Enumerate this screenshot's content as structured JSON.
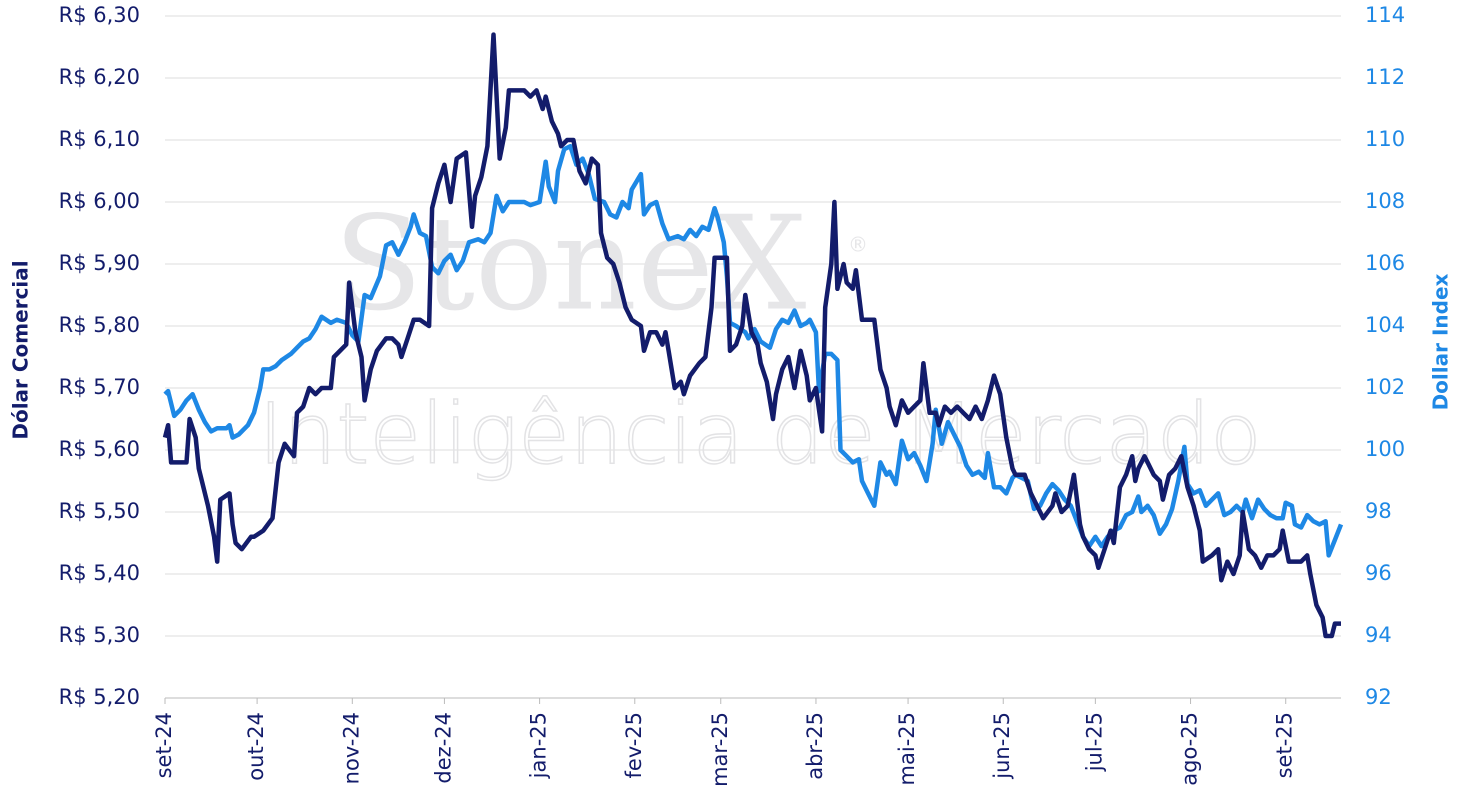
{
  "chart_data": {
    "type": "line",
    "watermark": [
      "StoneX",
      "®",
      "Inteligência de Mercado"
    ],
    "ylabel": "Dólar Comercial",
    "y2label": "Dollar Index",
    "xlim": [
      0,
      383
    ],
    "xticks": [
      {
        "value": 0,
        "label": "set-24"
      },
      {
        "value": 30,
        "label": "out-24"
      },
      {
        "value": 61,
        "label": "nov-24"
      },
      {
        "value": 91,
        "label": "dez-24"
      },
      {
        "value": 122,
        "label": "jan-25"
      },
      {
        "value": 153,
        "label": "fev-25"
      },
      {
        "value": 181,
        "label": "mar-25"
      },
      {
        "value": 212,
        "label": "abr-25"
      },
      {
        "value": 242,
        "label": "mai-25"
      },
      {
        "value": 273,
        "label": "jun-25"
      },
      {
        "value": 303,
        "label": "jul-25"
      },
      {
        "value": 334,
        "label": "ago-25"
      },
      {
        "value": 365,
        "label": "set-25"
      }
    ],
    "ylim": [
      5.2,
      6.3
    ],
    "yticks": [
      {
        "value": 5.2,
        "label": "R$ 5,20"
      },
      {
        "value": 5.3,
        "label": "R$ 5,30"
      },
      {
        "value": 5.4,
        "label": "R$ 5,40"
      },
      {
        "value": 5.5,
        "label": "R$ 5,50"
      },
      {
        "value": 5.6,
        "label": "R$ 5,60"
      },
      {
        "value": 5.7,
        "label": "R$ 5,70"
      },
      {
        "value": 5.8,
        "label": "R$ 5,80"
      },
      {
        "value": 5.9,
        "label": "R$ 5,90"
      },
      {
        "value": 6.0,
        "label": "R$ 6,00"
      },
      {
        "value": 6.1,
        "label": "R$ 6,10"
      },
      {
        "value": 6.2,
        "label": "R$ 6,20"
      },
      {
        "value": 6.3,
        "label": "R$ 6,30"
      }
    ],
    "y2lim": [
      92,
      114
    ],
    "y2ticks": [
      92,
      94,
      96,
      98,
      100,
      102,
      104,
      106,
      108,
      110,
      112,
      114
    ],
    "grid": true,
    "series": [
      {
        "name": "Dólar Comercial",
        "color": "#131c6b",
        "x": [
          0,
          1,
          2,
          5,
          7,
          8,
          10,
          11,
          14,
          16,
          17,
          18,
          21,
          22,
          23,
          25,
          28,
          29,
          32,
          35,
          37,
          39,
          42,
          43,
          45,
          47,
          49,
          51,
          54,
          55,
          59,
          60,
          62,
          64,
          65,
          67,
          69,
          72,
          74,
          76,
          77,
          79,
          81,
          83,
          86,
          87,
          89,
          91,
          93,
          95,
          98,
          100,
          101,
          103,
          105,
          107,
          109,
          111,
          112,
          115,
          117,
          119,
          121,
          123,
          124,
          126,
          128,
          129,
          131,
          133,
          135,
          137,
          139,
          141,
          142,
          144,
          146,
          148,
          150,
          152,
          155,
          156,
          158,
          160,
          162,
          163,
          164,
          166,
          168,
          169,
          171,
          174,
          176,
          178,
          179,
          183,
          184,
          186,
          188,
          189,
          191,
          193,
          194,
          196,
          198,
          199,
          201,
          203,
          205,
          207,
          209,
          210,
          212,
          214,
          215,
          217,
          218,
          219,
          221,
          222,
          224,
          225,
          227,
          231,
          233,
          235,
          236,
          238,
          240,
          242,
          244,
          246,
          247,
          249,
          251,
          252,
          254,
          256,
          258,
          260,
          262,
          264,
          266,
          268,
          270,
          272,
          274,
          276,
          277,
          280,
          282,
          284,
          286,
          289,
          290,
          292,
          294,
          296,
          298,
          299,
          301,
          303,
          304,
          306,
          308,
          309,
          311,
          313,
          315,
          316,
          317,
          319,
          320,
          322,
          324,
          325,
          327,
          329,
          330,
          331,
          333,
          335,
          337,
          338,
          341,
          343,
          344,
          346,
          348,
          350,
          351,
          353,
          355,
          357,
          359,
          361,
          363,
          364,
          366,
          368,
          370,
          372,
          373,
          375,
          377,
          378,
          380,
          381,
          383
        ],
        "values": [
          5.62,
          5.64,
          5.58,
          5.58,
          5.58,
          5.65,
          5.62,
          5.57,
          5.51,
          5.46,
          5.42,
          5.52,
          5.53,
          5.48,
          5.45,
          5.44,
          5.46,
          5.46,
          5.47,
          5.49,
          5.58,
          5.61,
          5.59,
          5.66,
          5.67,
          5.7,
          5.69,
          5.7,
          5.7,
          5.75,
          5.77,
          5.87,
          5.79,
          5.75,
          5.68,
          5.73,
          5.76,
          5.78,
          5.78,
          5.77,
          5.75,
          5.78,
          5.81,
          5.81,
          5.8,
          5.99,
          6.03,
          6.06,
          6.0,
          6.07,
          6.08,
          5.96,
          6.01,
          6.04,
          6.09,
          6.27,
          6.07,
          6.12,
          6.18,
          6.18,
          6.18,
          6.17,
          6.18,
          6.15,
          6.17,
          6.13,
          6.11,
          6.09,
          6.1,
          6.1,
          6.05,
          6.03,
          6.07,
          6.06,
          5.95,
          5.91,
          5.9,
          5.87,
          5.83,
          5.81,
          5.8,
          5.76,
          5.79,
          5.79,
          5.77,
          5.79,
          5.76,
          5.7,
          5.71,
          5.69,
          5.72,
          5.74,
          5.75,
          5.83,
          5.91,
          5.91,
          5.76,
          5.77,
          5.8,
          5.85,
          5.79,
          5.77,
          5.74,
          5.71,
          5.65,
          5.69,
          5.73,
          5.75,
          5.7,
          5.76,
          5.72,
          5.68,
          5.7,
          5.63,
          5.83,
          5.9,
          6.0,
          5.86,
          5.9,
          5.87,
          5.86,
          5.89,
          5.81,
          5.81,
          5.73,
          5.7,
          5.67,
          5.64,
          5.68,
          5.66,
          5.67,
          5.68,
          5.74,
          5.66,
          5.66,
          5.64,
          5.67,
          5.66,
          5.67,
          5.66,
          5.65,
          5.67,
          5.65,
          5.68,
          5.72,
          5.69,
          5.62,
          5.57,
          5.56,
          5.56,
          5.53,
          5.51,
          5.49,
          5.51,
          5.53,
          5.5,
          5.51,
          5.56,
          5.48,
          5.46,
          5.44,
          5.43,
          5.41,
          5.44,
          5.47,
          5.45,
          5.54,
          5.56,
          5.59,
          5.55,
          5.57,
          5.59,
          5.58,
          5.56,
          5.55,
          5.52,
          5.56,
          5.57,
          5.58,
          5.59,
          5.54,
          5.51,
          5.47,
          5.42,
          5.43,
          5.44,
          5.39,
          5.42,
          5.4,
          5.43,
          5.5,
          5.44,
          5.43,
          5.41,
          5.43,
          5.43,
          5.44,
          5.47,
          5.42,
          5.42,
          5.42,
          5.43,
          5.4,
          5.35,
          5.33,
          5.3,
          5.3,
          5.32,
          5.32
        ]
      },
      {
        "name": "Dollar Index",
        "color": "#1e88e5",
        "axis": "y2",
        "x": [
          0,
          1,
          3,
          5,
          7,
          9,
          11,
          13,
          15,
          17,
          20,
          21,
          22,
          24,
          27,
          29,
          31,
          32,
          34,
          36,
          38,
          41,
          43,
          45,
          47,
          49,
          51,
          54,
          56,
          59,
          61,
          63,
          65,
          67,
          70,
          72,
          74,
          76,
          78,
          80,
          81,
          83,
          85,
          87,
          89,
          91,
          93,
          95,
          97,
          99,
          102,
          104,
          106,
          108,
          110,
          112,
          115,
          117,
          119,
          122,
          124,
          125,
          127,
          128,
          130,
          132,
          134,
          136,
          138,
          140,
          143,
          145,
          147,
          149,
          151,
          152,
          155,
          156,
          158,
          160,
          162,
          164,
          167,
          169,
          171,
          173,
          175,
          177,
          179,
          180,
          182,
          183,
          184,
          186,
          189,
          190,
          192,
          194,
          197,
          199,
          201,
          203,
          205,
          207,
          209,
          210,
          212,
          213,
          215,
          217,
          219,
          220,
          222,
          224,
          226,
          227,
          229,
          231,
          233,
          235,
          236,
          238,
          240,
          242,
          244,
          246,
          248,
          250,
          251,
          253,
          255,
          257,
          259,
          261,
          263,
          265,
          267,
          268,
          270,
          272,
          274,
          276,
          277,
          279,
          281,
          283,
          285,
          287,
          289,
          291,
          293,
          295,
          297,
          299,
          301,
          303,
          305,
          307,
          309,
          311,
          313,
          315,
          317,
          318,
          320,
          322,
          324,
          326,
          328,
          330,
          332,
          333,
          335,
          337,
          339,
          341,
          343,
          345,
          347,
          349,
          351,
          352,
          354,
          356,
          358,
          360,
          362,
          364,
          365,
          367,
          368,
          370,
          372,
          374,
          376,
          378,
          379,
          381,
          383
        ],
        "values": [
          101.8,
          101.9,
          101.1,
          101.3,
          101.6,
          101.8,
          101.3,
          100.9,
          100.6,
          100.7,
          100.7,
          100.8,
          100.4,
          100.5,
          100.8,
          101.2,
          102.0,
          102.6,
          102.6,
          102.7,
          102.9,
          103.1,
          103.3,
          103.5,
          103.6,
          103.9,
          104.3,
          104.1,
          104.2,
          104.1,
          103.7,
          103.5,
          105.0,
          104.9,
          105.6,
          106.6,
          106.7,
          106.3,
          106.7,
          107.2,
          107.6,
          107.0,
          106.9,
          105.9,
          105.7,
          106.1,
          106.3,
          105.8,
          106.1,
          106.7,
          106.8,
          106.7,
          107.0,
          108.2,
          107.7,
          108.0,
          108.0,
          108.0,
          107.9,
          108.0,
          109.3,
          108.5,
          108.0,
          109.0,
          109.7,
          109.8,
          109.2,
          109.4,
          108.9,
          108.1,
          108.0,
          107.6,
          107.5,
          108.0,
          107.8,
          108.4,
          108.9,
          107.6,
          107.9,
          108.0,
          107.3,
          106.8,
          106.9,
          106.8,
          107.1,
          106.9,
          107.2,
          107.1,
          107.8,
          107.5,
          106.7,
          105.6,
          104.1,
          104.0,
          103.8,
          103.6,
          103.9,
          103.5,
          103.3,
          103.9,
          104.2,
          104.1,
          104.5,
          104.0,
          104.1,
          104.2,
          103.8,
          101.9,
          103.1,
          103.1,
          102.9,
          100.0,
          99.8,
          99.6,
          99.7,
          99.0,
          98.6,
          98.2,
          99.6,
          99.2,
          99.3,
          98.9,
          100.3,
          99.7,
          99.9,
          99.5,
          99.0,
          100.2,
          101.3,
          100.2,
          100.9,
          100.5,
          100.1,
          99.5,
          99.2,
          99.3,
          99.1,
          99.9,
          98.8,
          98.8,
          98.6,
          99.1,
          99.2,
          99.1,
          99.0,
          98.1,
          98.2,
          98.6,
          98.9,
          98.7,
          98.4,
          98.2,
          97.7,
          97.2,
          96.9,
          97.2,
          96.9,
          97.2,
          97.4,
          97.5,
          97.9,
          98.0,
          98.5,
          98.0,
          98.2,
          97.9,
          97.3,
          97.6,
          98.1,
          99.0,
          100.1,
          98.9,
          98.6,
          98.7,
          98.2,
          98.4,
          98.6,
          97.9,
          98.0,
          98.2,
          98.0,
          98.4,
          97.8,
          98.4,
          98.1,
          97.9,
          97.8,
          97.8,
          98.3,
          98.2,
          97.6,
          97.5,
          97.9,
          97.7,
          97.6,
          97.7,
          96.6,
          97.1,
          97.6
        ]
      }
    ]
  }
}
